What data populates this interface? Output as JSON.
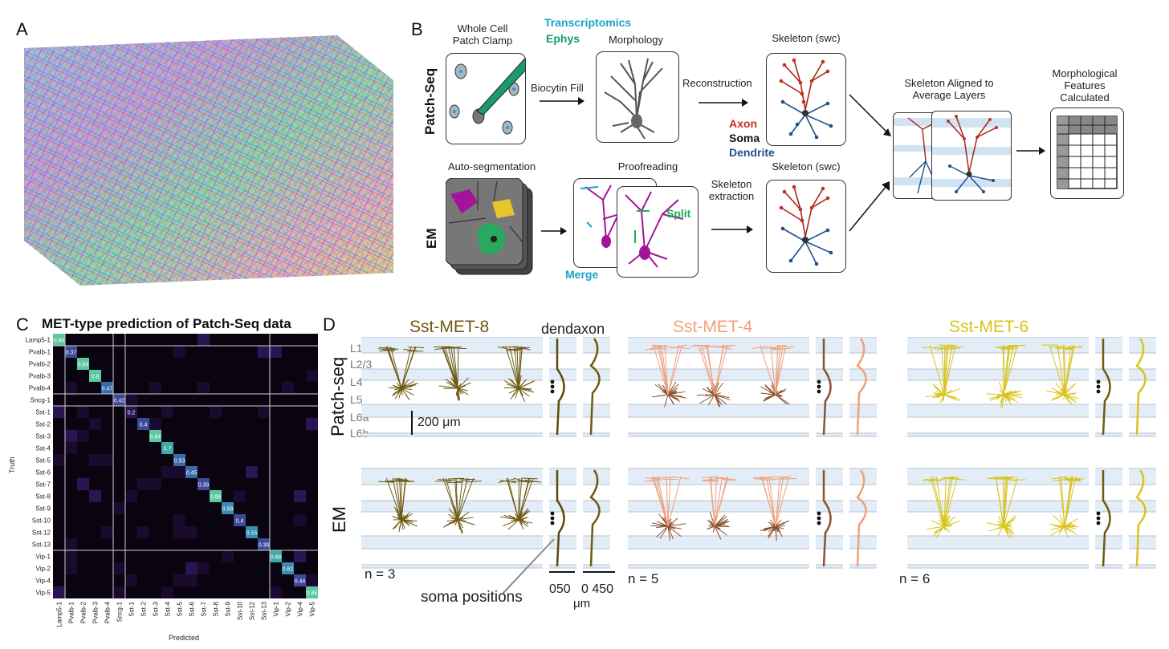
{
  "panels": {
    "a": "A",
    "b": "B",
    "c": "C",
    "d": "D"
  },
  "b": {
    "row_patchseq": "Patch-Seq",
    "row_em": "EM",
    "whole_cell_line1": "Whole Cell",
    "whole_cell_line2": "Patch Clamp",
    "transcriptomics": "Transcriptomics",
    "ephys": "Ephys",
    "biocytin": "Biocytin Fill",
    "morphology": "Morphology",
    "reconstruction": "Reconstruction",
    "skeleton_swc": "Skeleton (swc)",
    "axon": "Axon",
    "soma": "Soma",
    "dendrite": "Dendrite",
    "autoseg": "Auto-segmentation",
    "proofreading": "Proofreading",
    "split": "Split",
    "merge": "Merge",
    "skel_extract_line1": "Skeleton",
    "skel_extract_line2": "extraction",
    "aligned_line1": "Skeleton Aligned to",
    "aligned_line2": "Average Layers",
    "features_line1": "Morphological",
    "features_line2": "Features",
    "features_line3": "Calculated",
    "colors": {
      "axon": "#c0321f",
      "dendrite": "#1f4f8a",
      "transcriptomics": "#1aa3c8",
      "ephys": "#1a9b6b",
      "split": "#1bb052",
      "merge": "#1aa3c8",
      "em_purple": "#a2159a"
    }
  },
  "c": {
    "chart_data": {
      "type": "heatmap",
      "title": "MET-type prediction of Patch-Seq data",
      "xlabel": "Predicted",
      "ylabel": "Truth",
      "labels": [
        "Lamp5-1",
        "Pvalb-1",
        "Pvalb-2",
        "Pvalb-3",
        "Pvalb-4",
        "Sncg-1",
        "Sst-1",
        "Sst-2",
        "Sst-3",
        "Sst-4",
        "Sst-5",
        "Sst-6",
        "Sst-7",
        "Sst-8",
        "Sst-9",
        "Sst-10",
        "Sst-12",
        "Sst-13",
        "Vip-1",
        "Vip-2",
        "Vip-4",
        "Vip-5"
      ],
      "diagonal": [
        "0.86",
        "0.37",
        "0.89",
        "0.8",
        "0.47",
        "0.42",
        "0.2",
        "0.4",
        "0.84",
        "0.7",
        "0.53",
        "0.45",
        "0.39",
        "0.86",
        "0.58",
        "0.4",
        "0.55",
        "0.39",
        "0.68",
        "0.62",
        "0.44",
        "0.86"
      ],
      "group_breaks": [
        1,
        5,
        6,
        18
      ]
    }
  },
  "d": {
    "dendaxon": "dendaxon",
    "row_patchseq": "Patch-seq",
    "row_em": "EM",
    "layers": [
      "L1",
      "L2/3",
      "L4",
      "L5",
      "L6a",
      "L6b"
    ],
    "scalebar": "200 μm",
    "soma_positions": "soma positions",
    "axis_ticks_1": "050",
    "axis_ticks_2": "0 450",
    "axis_unit": "μm",
    "types": [
      {
        "name": "Sst-MET-8",
        "n": "n = 3",
        "color": "#6e5a10",
        "dark": "#5a4a0c"
      },
      {
        "name": "Sst-MET-4",
        "n": "n = 5",
        "color": "#f0a07a",
        "dark": "#8a5230"
      },
      {
        "name": "Sst-MET-6",
        "n": "n = 6",
        "color": "#d9c31a",
        "dark": "#6e5a10"
      }
    ]
  }
}
